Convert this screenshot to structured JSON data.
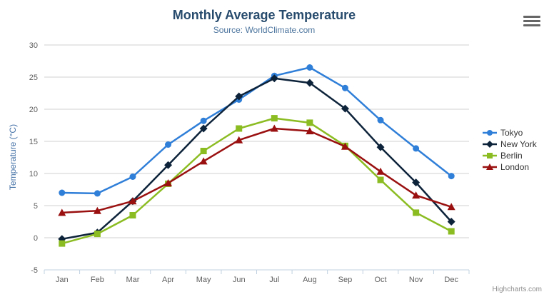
{
  "header": {
    "menu_icon": "hamburger-icon"
  },
  "chart_data": {
    "type": "line",
    "title": "Monthly Average Temperature",
    "subtitle": "Source: WorldClimate.com",
    "categories": [
      "Jan",
      "Feb",
      "Mar",
      "Apr",
      "May",
      "Jun",
      "Jul",
      "Aug",
      "Sep",
      "Oct",
      "Nov",
      "Dec"
    ],
    "xlabel": "",
    "ylabel": "Temperature (°C)",
    "ylim": [
      -5,
      30
    ],
    "ytick_step": 5,
    "yticks": [
      -5,
      0,
      5,
      10,
      15,
      20,
      25,
      30
    ],
    "grid": true,
    "legend_position": "right",
    "series": [
      {
        "name": "Tokyo",
        "color": "#2f7ed8",
        "marker": "circle",
        "values": [
          7.0,
          6.9,
          9.5,
          14.5,
          18.2,
          21.5,
          25.2,
          26.5,
          23.3,
          18.3,
          13.9,
          9.6
        ]
      },
      {
        "name": "New York",
        "color": "#0d233a",
        "marker": "diamond",
        "values": [
          -0.2,
          0.8,
          5.7,
          11.3,
          17.0,
          22.0,
          24.8,
          24.1,
          20.1,
          14.1,
          8.6,
          2.5
        ]
      },
      {
        "name": "Berlin",
        "color": "#8bbc21",
        "marker": "square",
        "values": [
          -0.9,
          0.6,
          3.5,
          8.4,
          13.5,
          17.0,
          18.6,
          17.9,
          14.3,
          9.0,
          3.9,
          1.0
        ]
      },
      {
        "name": "London",
        "color": "#9a1010",
        "marker": "triangle",
        "values": [
          3.9,
          4.2,
          5.7,
          8.5,
          11.9,
          15.2,
          17.0,
          16.6,
          14.2,
          10.3,
          6.6,
          4.8
        ]
      }
    ],
    "colors": {
      "title": "#274b6d",
      "subtitle": "#4d759e",
      "axis_title": "#4572a7",
      "axis_labels": "#606060",
      "gridline": "#d0d0d0",
      "axis_line": "#c0d0e0"
    }
  },
  "credits": {
    "label": "Highcharts.com"
  }
}
